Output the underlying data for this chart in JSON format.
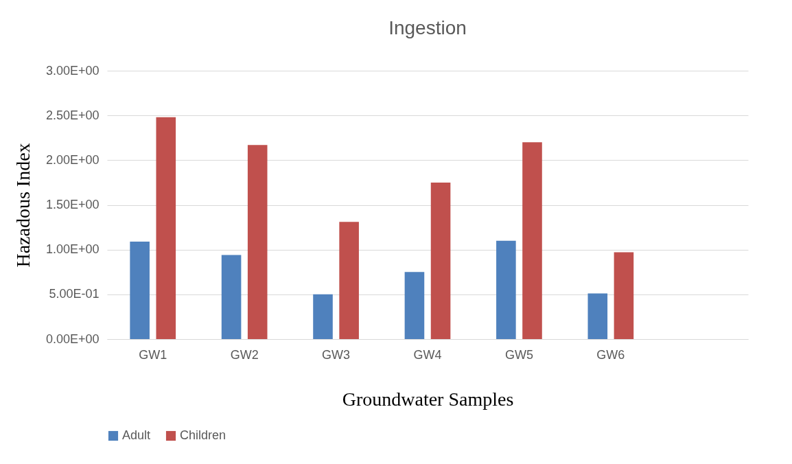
{
  "chart_data": {
    "type": "bar",
    "title": "Ingestion",
    "xlabel": "Groundwater Samples",
    "ylabel": "Hazadous Index",
    "categories": [
      "GW1",
      "GW2",
      "GW3",
      "GW4",
      "GW5",
      "GW6",
      null
    ],
    "series": [
      {
        "name": "Adult",
        "color": "#4f81bd",
        "values": [
          1.09,
          0.94,
          0.5,
          0.75,
          1.1,
          0.51,
          null
        ]
      },
      {
        "name": "Children",
        "color": "#c0504d",
        "values": [
          2.48,
          2.17,
          1.31,
          1.75,
          2.2,
          0.97,
          null
        ]
      }
    ],
    "ylim": [
      0,
      3
    ],
    "yticks": [
      {
        "value": 0,
        "label": "0.00E+00"
      },
      {
        "value": 0.5,
        "label": "5.00E-01"
      },
      {
        "value": 1,
        "label": "1.00E+00"
      },
      {
        "value": 1.5,
        "label": "1.50E+00"
      },
      {
        "value": 2,
        "label": "2.00E+00"
      },
      {
        "value": 2.5,
        "label": "2.50E+00"
      },
      {
        "value": 3,
        "label": "3.00E+00"
      }
    ],
    "grid": "y",
    "legend": "bottom"
  }
}
